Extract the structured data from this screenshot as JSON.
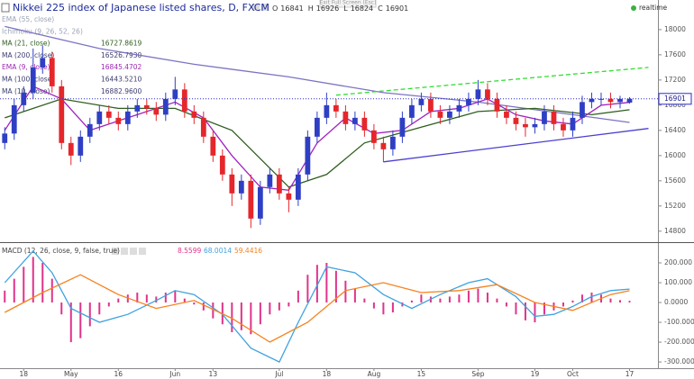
{
  "overlay_text": "Exit Full Screen (Esc)",
  "chart_data": [
    {
      "type": "candlestick",
      "title": "Nikkei 225 index of Japanese listed shares, D, FXCM",
      "status": "realtime",
      "ohlc_labels": [
        "O",
        "H",
        "L",
        "C"
      ],
      "up_color": "#2f3fc4",
      "down_color": "#e5262b",
      "open": [
        16200,
        16350,
        16800,
        17000,
        17400,
        17550,
        17100,
        16200,
        16000,
        16300,
        16500,
        16700,
        16600,
        16500,
        16700,
        16800,
        16750,
        16650,
        16900,
        17050,
        16700,
        16600,
        16300,
        16000,
        15700,
        15400,
        15600,
        15000,
        15500,
        15700,
        15400,
        15300,
        15700,
        16300,
        16600,
        16800,
        16700,
        16500,
        16600,
        16400,
        16200,
        16100,
        16300,
        16600,
        16800,
        16900,
        16700,
        16600,
        16700,
        16800,
        16900,
        17050,
        16900,
        16700,
        16600,
        16500,
        16450,
        16500,
        16700,
        16500,
        16400,
        16600,
        16850,
        16900,
        16900,
        16850,
        16841
      ],
      "high": [
        16450,
        16900,
        17100,
        17700,
        17750,
        17650,
        17200,
        16300,
        16400,
        16600,
        16800,
        16800,
        16700,
        16800,
        16900,
        16900,
        16850,
        17000,
        17250,
        17150,
        16800,
        16700,
        16400,
        16100,
        15800,
        15700,
        15700,
        15600,
        15800,
        15800,
        15500,
        15800,
        16400,
        16700,
        17000,
        16900,
        16800,
        16700,
        16700,
        16500,
        16300,
        16400,
        16700,
        16900,
        17000,
        17000,
        16800,
        16800,
        16900,
        17000,
        17200,
        17150,
        17000,
        16800,
        16700,
        16600,
        16600,
        16800,
        16800,
        16600,
        16700,
        16950,
        17000,
        17000,
        17000,
        16950,
        16926
      ],
      "low": [
        16100,
        16250,
        16700,
        16900,
        17300,
        17000,
        16100,
        15850,
        15900,
        16200,
        16400,
        16500,
        16400,
        16400,
        16600,
        16650,
        16550,
        16550,
        16800,
        16600,
        16500,
        16200,
        15900,
        15600,
        15200,
        15300,
        14850,
        14900,
        15400,
        15300,
        15100,
        15200,
        15600,
        16200,
        16500,
        16600,
        16400,
        16400,
        16300,
        16100,
        15900,
        16000,
        16200,
        16500,
        16700,
        16600,
        16500,
        16500,
        16600,
        16700,
        16800,
        16800,
        16600,
        16500,
        16400,
        16300,
        16350,
        16400,
        16400,
        16300,
        16300,
        16500,
        16750,
        16800,
        16750,
        16750,
        16824
      ],
      "close": [
        16350,
        16800,
        17000,
        17400,
        17550,
        17100,
        16200,
        16000,
        16300,
        16500,
        16700,
        16600,
        16500,
        16700,
        16800,
        16750,
        16650,
        16900,
        17050,
        16700,
        16600,
        16300,
        16000,
        15700,
        15400,
        15600,
        15000,
        15500,
        15700,
        15400,
        15300,
        15700,
        16300,
        16600,
        16800,
        16700,
        16500,
        16600,
        16400,
        16200,
        16100,
        16300,
        16600,
        16800,
        16900,
        16700,
        16600,
        16700,
        16800,
        16900,
        17050,
        16900,
        16700,
        16600,
        16500,
        16450,
        16500,
        16700,
        16500,
        16400,
        16600,
        16850,
        16900,
        16900,
        16850,
        16900,
        16901
      ],
      "xlim": [
        -0.5,
        69
      ],
      "xticks": [
        {
          "value": 2,
          "label": "18"
        },
        {
          "value": 7,
          "label": "May"
        },
        {
          "value": 12,
          "label": "16"
        },
        {
          "value": 18,
          "label": "Jun"
        },
        {
          "value": 22,
          "label": "13"
        },
        {
          "value": 29,
          "label": "Jul"
        },
        {
          "value": 34,
          "label": "18"
        },
        {
          "value": 39,
          "label": "Aug"
        },
        {
          "value": 44,
          "label": "15"
        },
        {
          "value": 50,
          "label": "Sep"
        },
        {
          "value": 56,
          "label": "19"
        },
        {
          "value": 60,
          "label": "Oct"
        },
        {
          "value": 66,
          "label": "17"
        }
      ],
      "ylim": [
        14640,
        18470
      ],
      "yticks": [
        14800,
        15200,
        15600,
        16000,
        16400,
        16800,
        17200,
        17600,
        18000
      ],
      "last_price": 16901,
      "indicators": [
        {
          "name": "EMA (55, close)",
          "color": "#9aa3b5"
        },
        {
          "name": "Ichimoku (9, 26, 52, 26)",
          "color": "#9aa3b5"
        },
        {
          "name": "MA (21, close)",
          "value": "16727.8619",
          "color": "#2e5e1e"
        },
        {
          "name": "MA (200, close)",
          "value": "16526.7930",
          "color": "#3d3d70"
        },
        {
          "name": "EMA (9, close)",
          "value": "16845.4702",
          "color": "#9c27b0"
        },
        {
          "name": "MA (100, close)",
          "value": "16443.5210",
          "color": "#3d3d70"
        },
        {
          "name": "MA (10, close)",
          "value": "16882.9600",
          "color": "#3d3d70"
        }
      ],
      "series": [
        {
          "color": "#7b73c4",
          "x": [
            0,
            10,
            20,
            30,
            40,
            50,
            60,
            66
          ],
          "values": [
            18050,
            17700,
            17450,
            17250,
            17000,
            16850,
            16650,
            16527
          ]
        },
        {
          "color": "#2e5e1e",
          "x": [
            0,
            6,
            12,
            18,
            24,
            30,
            34,
            38,
            44,
            50,
            56,
            62,
            66
          ],
          "values": [
            16600,
            16900,
            16750,
            16750,
            16400,
            15500,
            15700,
            16200,
            16450,
            16700,
            16750,
            16650,
            16728
          ]
        },
        {
          "color": "#a020c0",
          "x": [
            0,
            3,
            6,
            9,
            12,
            15,
            18,
            21,
            24,
            27,
            30,
            33,
            36,
            39,
            42,
            45,
            48,
            51,
            54,
            57,
            60,
            63,
            66
          ],
          "values": [
            16400,
            17100,
            16900,
            16400,
            16550,
            16700,
            16850,
            16600,
            16000,
            15500,
            15450,
            16200,
            16600,
            16350,
            16400,
            16700,
            16750,
            16900,
            16650,
            16550,
            16500,
            16800,
            16845
          ]
        }
      ],
      "trend_lines": [
        {
          "color": "#33dd33",
          "dashed": true,
          "x": [
            35,
            68
          ],
          "values": [
            16960,
            17400
          ]
        },
        {
          "color": "#4a3fd0",
          "dashed": false,
          "x": [
            40,
            68
          ],
          "values": [
            15900,
            16430
          ]
        }
      ]
    },
    {
      "type": "macd",
      "title": "MACD (12, 26, close, 9, false, true)",
      "xlim": [
        -0.5,
        69
      ],
      "ylim": [
        -327,
        300
      ],
      "yticks": [
        {
          "value": -300,
          "label": "-300.000"
        },
        {
          "value": -200,
          "label": "-200.000"
        },
        {
          "value": -100,
          "label": "-100.000"
        },
        {
          "value": 0,
          "label": "0.0000"
        },
        {
          "value": 100,
          "label": "100.000"
        },
        {
          "value": 200,
          "label": "200.000"
        }
      ],
      "histogram": {
        "color": "#e0338a",
        "values": [
          60,
          120,
          180,
          230,
          200,
          120,
          -60,
          -200,
          -180,
          -120,
          -60,
          -20,
          20,
          40,
          50,
          40,
          30,
          50,
          60,
          20,
          -10,
          -40,
          -80,
          -110,
          -150,
          -140,
          -160,
          -110,
          -60,
          -40,
          -20,
          60,
          140,
          190,
          200,
          160,
          110,
          70,
          20,
          -30,
          -60,
          -50,
          -20,
          10,
          40,
          30,
          20,
          30,
          40,
          60,
          70,
          50,
          20,
          -20,
          -60,
          -90,
          -100,
          -60,
          -40,
          -20,
          10,
          40,
          50,
          40,
          20,
          12,
          8.5599
        ]
      },
      "series": [
        {
          "color": "#3fa2e0",
          "x": [
            0,
            3,
            5,
            7,
            10,
            13,
            16,
            18,
            20,
            23,
            26,
            29,
            31,
            34,
            37,
            40,
            43,
            46,
            49,
            51,
            54,
            56,
            58,
            60,
            62,
            64,
            66
          ],
          "values": [
            100,
            260,
            150,
            -30,
            -100,
            -60,
            10,
            60,
            40,
            -60,
            -230,
            -300,
            -100,
            180,
            150,
            40,
            -30,
            40,
            100,
            120,
            30,
            -70,
            -60,
            -20,
            30,
            60,
            68.0014
          ]
        },
        {
          "color": "#f5821f",
          "x": [
            0,
            4,
            8,
            12,
            16,
            20,
            24,
            28,
            32,
            36,
            40,
            44,
            48,
            52,
            56,
            60,
            64,
            66
          ],
          "values": [
            -50,
            50,
            140,
            40,
            -30,
            10,
            -80,
            -200,
            -100,
            60,
            100,
            50,
            60,
            90,
            0,
            -40,
            40,
            59.4416
          ]
        }
      ]
    }
  ]
}
